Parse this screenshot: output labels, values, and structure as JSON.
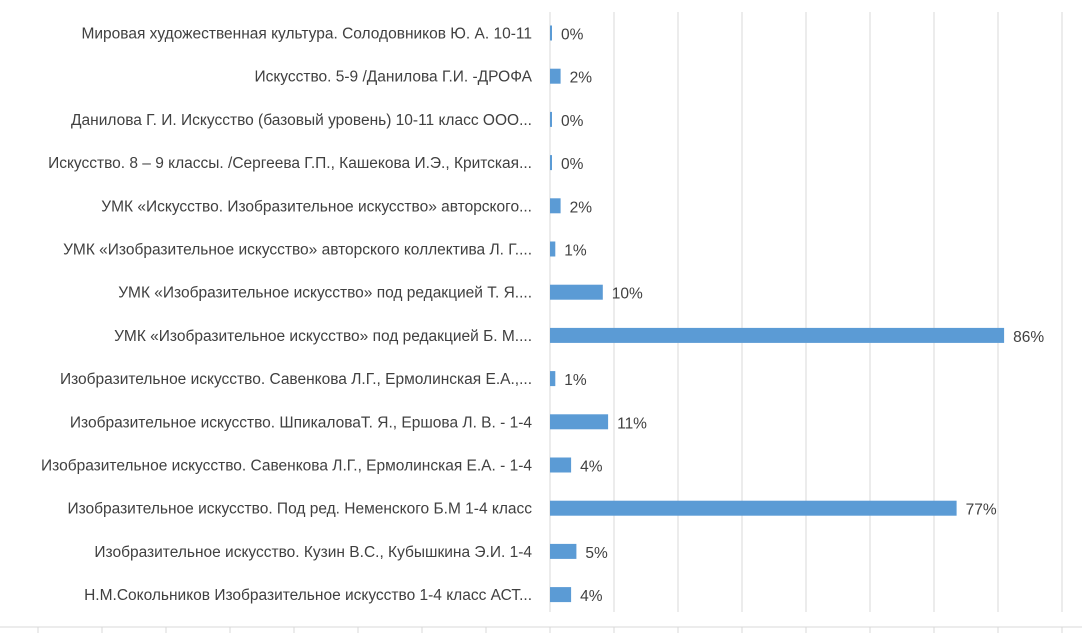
{
  "chart_data": {
    "type": "bar",
    "orientation": "horizontal",
    "title": "",
    "xlabel": "",
    "ylabel": "",
    "xlim": [
      0,
      1.0
    ],
    "grid": true,
    "legend": "none",
    "bar_color": "#5b9bd5",
    "grid_color": "#d9d9d9",
    "text_color": "#404040",
    "categories": [
      "Мировая художественная культура. Солодовников Ю. А. 10-11",
      "Искусство. 5-9 /Данилова Г.И. -ДРОФА",
      "Данилова Г. И. Искусство (базовый уровень) 10-11 класс ООО...",
      "Искусство. 8 – 9 классы. /Сергеева Г.П., Кашекова И.Э., Критская...",
      "УМК «Искусство. Изобразительное искусство» авторского...",
      "УМК «Изобразительное искусство» авторского коллектива Л. Г....",
      "УМК «Изобразительное искусство» под редакцией Т. Я....",
      "УМК «Изобразительное искусство» под редакцией Б. М....",
      "Изобразительное искусство. Савенкова Л.Г., Ермолинская Е.А.,...",
      "Изобразительное искусство. ШпикаловаТ. Я., Ершова Л. В. -  1-4",
      "Изобразительное искусство. Савенкова Л.Г., Ермолинская Е.А. - 1-4",
      "Изобразительное искусство.  Под ред. Неменского Б.М  1-4 класс",
      "Изобразительное искусство. Кузин В.С., Кубышкина Э.И. 1-4",
      "Н.М.Сокольников Изобразительное искусство 1-4 класс АСТ..."
    ],
    "values": [
      0.0,
      0.02,
      0.0,
      0.0,
      0.02,
      0.01,
      0.1,
      0.86,
      0.01,
      0.11,
      0.04,
      0.77,
      0.05,
      0.04
    ],
    "value_labels": [
      "0%",
      "2%",
      "0%",
      "0%",
      "2%",
      "1%",
      "10%",
      "86%",
      "1%",
      "11%",
      "4%",
      "77%",
      "5%",
      "4%"
    ]
  }
}
